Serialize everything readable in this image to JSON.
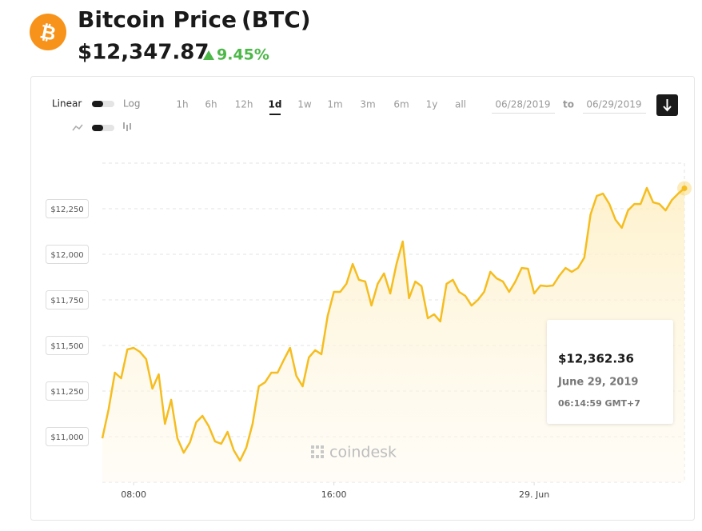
{
  "header": {
    "title": "Bitcoin Price",
    "ticker": "(BTC)",
    "price": "$12,347.87",
    "change": "9.45%"
  },
  "controls": {
    "scale_linear": "Linear",
    "scale_log": "Log",
    "ranges": [
      "1h",
      "6h",
      "12h",
      "1d",
      "1w",
      "1m",
      "3m",
      "6m",
      "1y",
      "all"
    ],
    "active_range": "1d",
    "from": "06/28/2019",
    "separator": "to",
    "to": "06/29/2019"
  },
  "tooltip": {
    "price": "$12,362.36",
    "date": "June 29, 2019",
    "time": "06:14:59 GMT+7"
  },
  "watermark": "coindesk",
  "chart_data": {
    "type": "line",
    "color": "#f5bd1f",
    "grid": true,
    "x": [
      6.75,
      7,
      7.25,
      7.5,
      7.75,
      8,
      8.25,
      8.5,
      8.75,
      9,
      9.25,
      9.5,
      9.75,
      10,
      10.25,
      10.5,
      10.75,
      11,
      11.25,
      11.5,
      11.75,
      12,
      12.25,
      12.5,
      12.75,
      13,
      13.25,
      13.5,
      13.75,
      14,
      14.25,
      14.5,
      14.75,
      15,
      15.25,
      15.5,
      15.75,
      16,
      16.25,
      16.5,
      16.75,
      17,
      17.25,
      17.5,
      17.75,
      18,
      18.25,
      18.5,
      18.75,
      19,
      19.25,
      19.5,
      19.75,
      20,
      20.25,
      20.5,
      20.75,
      21,
      21.25,
      21.5,
      21.75,
      22,
      22.25,
      22.5,
      22.75,
      23,
      23.25,
      23.5,
      23.75,
      24,
      24.25,
      24.5,
      24.75,
      25,
      25.25,
      25.5,
      25.75,
      26,
      26.25,
      26.5,
      26.75,
      27,
      27.25,
      27.5,
      27.75,
      28,
      28.25,
      28.5,
      28.75,
      29,
      29.25,
      29.5,
      29.75,
      30
    ],
    "values": [
      10991,
      11149,
      11351,
      11320,
      11478,
      11487,
      11465,
      11425,
      11263,
      11342,
      11070,
      11202,
      10991,
      10912,
      10969,
      11079,
      11114,
      11057,
      10974,
      10961,
      11026,
      10925,
      10868,
      10939,
      11070,
      11276,
      11298,
      11351,
      11351,
      11421,
      11487,
      11333,
      11276,
      11434,
      11474,
      11452,
      11662,
      11794,
      11794,
      11838,
      11947,
      11860,
      11851,
      11719,
      11838,
      11895,
      11785,
      11947,
      12070,
      11759,
      11851,
      11825,
      11649,
      11671,
      11632,
      11838,
      11860,
      11794,
      11772,
      11719,
      11750,
      11794,
      11904,
      11868,
      11851,
      11794,
      11851,
      11925,
      11921,
      11785,
      11829,
      11825,
      11829,
      11882,
      11925,
      11904,
      11925,
      11982,
      12219,
      12320,
      12333,
      12276,
      12189,
      12145,
      12241,
      12276,
      12276,
      12364,
      12285,
      12276,
      12241,
      12298,
      12333,
      12362
    ],
    "xlim": [
      6.75,
      30
    ],
    "xticks": [
      {
        "value": 8,
        "label": "08:00"
      },
      {
        "value": 16,
        "label": "16:00"
      },
      {
        "value": 24,
        "label": "29. Jun"
      }
    ],
    "ylim": [
      10750,
      12500
    ],
    "yticks": [
      {
        "value": 11000,
        "label": "$11,000"
      },
      {
        "value": 11250,
        "label": "$11,250"
      },
      {
        "value": 11500,
        "label": "$11,500"
      },
      {
        "value": 11750,
        "label": "$11,750"
      },
      {
        "value": 12000,
        "label": "$12,000"
      },
      {
        "value": 12250,
        "label": "$12,250"
      }
    ]
  }
}
